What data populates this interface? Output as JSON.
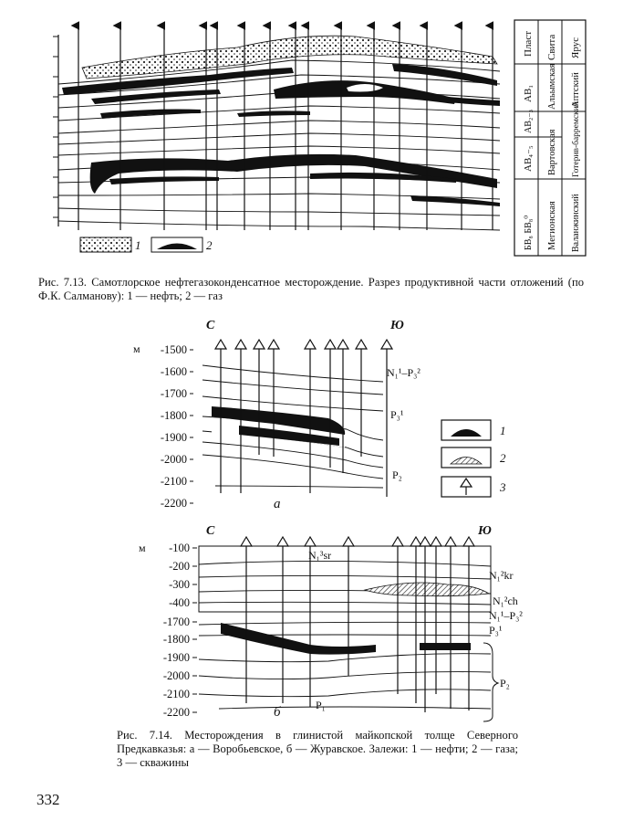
{
  "fig713": {
    "legend": [
      {
        "num": "1",
        "kind": "oil-dotted"
      },
      {
        "num": "2",
        "kind": "gas-black"
      }
    ],
    "table": {
      "headers": [
        "Пласт",
        "Свита",
        "Ярус"
      ],
      "rows": [
        {
          "plast": "АВ₁",
          "svita": "Альымская",
          "yarus": "Аптский"
        },
        {
          "plast": "АВ₂₋₃",
          "svita": "",
          "yarus": ""
        },
        {
          "plast": "АВ₄₋₅",
          "svita": "Вартовская",
          "yarus": "Готерив-барремский"
        },
        {
          "plast": "БВ₈ БВ₈⁰",
          "svita": "Мегионская",
          "yarus": "Валанжинский"
        }
      ]
    },
    "caption": "Рис. 7.13. Самотлорское нефтегазоконденсатное месторождение. Разрез продуктивной части отложений (по Ф.К. Салманову): 1 — нефть; 2 — газ"
  },
  "fig714": {
    "a": {
      "left_dir": "С",
      "right_dir": "Ю",
      "unit": "м",
      "depths": [
        "-1500",
        "-1600",
        "-1700",
        "-1800",
        "-1900",
        "-2000",
        "-2100",
        "-2200"
      ],
      "label": "а",
      "strata": [
        "N₁¹–P₃²",
        "P₃¹",
        "P₂"
      ]
    },
    "b": {
      "left_dir": "С",
      "right_dir": "Ю",
      "unit": "м",
      "depths": [
        "-100",
        "-200",
        "-300",
        "-400",
        "-1700",
        "-1800",
        "-1900",
        "-2000",
        "-2100",
        "-2200"
      ],
      "label": "б",
      "strata": [
        "N₁³sr",
        "N₁²kr",
        "N₁²ch",
        "N₁¹–P₃²",
        "P₃¹",
        "P₂",
        "P₁"
      ]
    },
    "legend": [
      {
        "num": "1",
        "kind": "oil-black"
      },
      {
        "num": "2",
        "kind": "gas-hatched"
      },
      {
        "num": "3",
        "kind": "well"
      }
    ],
    "caption": "Рис. 7.14. Месторождения в глинистой майкопской толще Северного Предкавказья: а — Воробьевское, б — Журавское. Залежи: 1 — нефти; 2 — газа; 3 — скважины"
  },
  "page_number": "332"
}
